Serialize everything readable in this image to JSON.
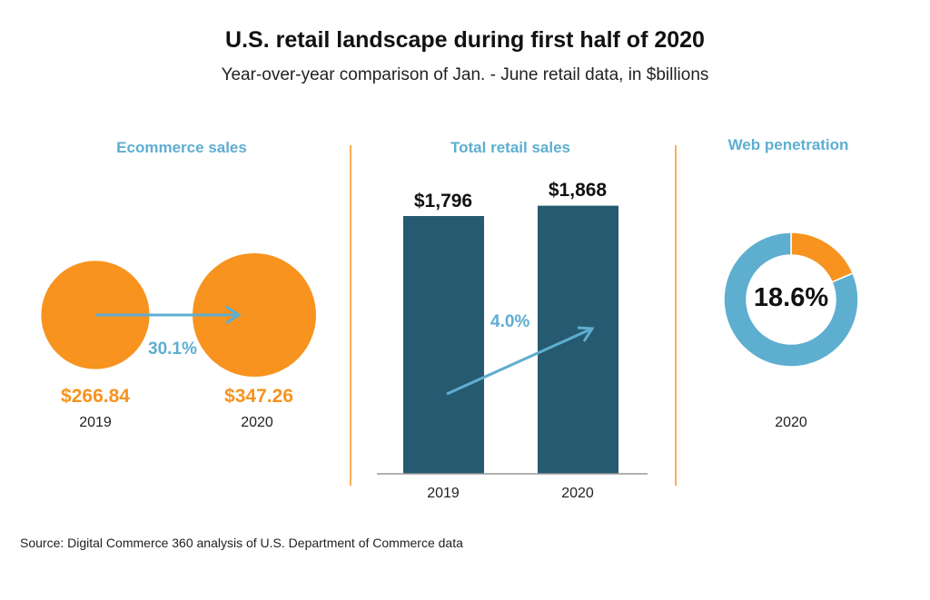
{
  "title": "U.S. retail landscape during first half of 2020",
  "subtitle": "Year-over-year comparison of Jan. - June retail data, in $billions",
  "source": "Source: Digital Commerce 360 analysis of U.S. Department of Commerce data",
  "colors": {
    "orange": "#f7931e",
    "blue": "#5eaed0",
    "navy": "#265a70"
  },
  "chart_data": [
    {
      "type": "bubble",
      "title": "Ecommerce sales",
      "categories": [
        "2019",
        "2020"
      ],
      "values": [
        266.84,
        347.26
      ],
      "value_labels": [
        "$266.84",
        "$347.26"
      ],
      "change_label": "30.1%"
    },
    {
      "type": "bar",
      "title": "Total retail sales",
      "categories": [
        "2019",
        "2020"
      ],
      "values": [
        1796,
        1868
      ],
      "value_labels": [
        "$1,796",
        "$1,868"
      ],
      "change_label": "4.0%"
    },
    {
      "type": "pie",
      "title": "Web penetration",
      "category": "2020",
      "values": [
        18.6,
        81.4
      ],
      "center_label": "18.6%"
    }
  ]
}
